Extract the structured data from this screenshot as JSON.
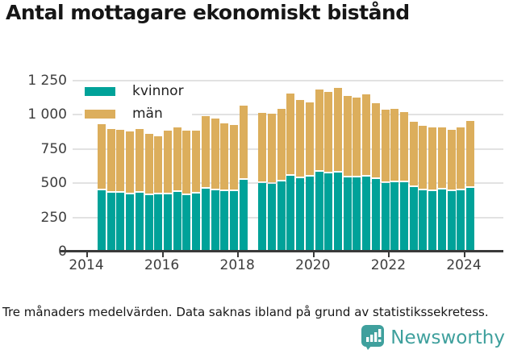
{
  "title": "Antal mottagare ekonomiskt bistånd",
  "legend": {
    "items": [
      {
        "label": "kvinnor",
        "color": "#00a299"
      },
      {
        "label": "män",
        "color": "#dcae5c"
      }
    ]
  },
  "y_axis": {
    "tick_labels": [
      "1 250",
      "1 000",
      "750",
      "500",
      "250",
      "0"
    ],
    "tick_values": [
      1250,
      1000,
      750,
      500,
      250,
      0
    ]
  },
  "x_axis": {
    "tick_labels": [
      "2014",
      "2016",
      "2018",
      "2020",
      "2022",
      "2024"
    ]
  },
  "footer": {
    "note": "Tre månaders medelvärden. Data saknas ibland på grund av statistikssekretess.",
    "brand": "Newsworthy"
  },
  "colors": {
    "kvinnor": "#00a299",
    "man": "#dcae5c",
    "axis": "#3a3a3a",
    "grid": "#e2e2e2",
    "brand_teal": "#3fa09d"
  },
  "chart_data": {
    "type": "bar",
    "stacked": true,
    "title": "Antal mottagare ekonomiskt bistånd",
    "xlabel": "",
    "ylabel": "",
    "ylim": [
      0,
      1280
    ],
    "grid": "horizontal",
    "legend_position": "top-left",
    "note": "Data missing for 2018 Q2 (statistical secrecy)",
    "x": [
      "2014 Q2",
      "2014 Q3",
      "2014 Q4",
      "2015 Q1",
      "2015 Q2",
      "2015 Q3",
      "2015 Q4",
      "2016 Q1",
      "2016 Q2",
      "2016 Q3",
      "2016 Q4",
      "2017 Q1",
      "2017 Q2",
      "2017 Q3",
      "2017 Q4",
      "2018 Q1",
      "2018 Q2",
      "2018 Q3",
      "2018 Q4",
      "2019 Q1",
      "2019 Q2",
      "2019 Q3",
      "2019 Q4",
      "2020 Q1",
      "2020 Q2",
      "2020 Q3",
      "2020 Q4",
      "2021 Q1",
      "2021 Q2",
      "2021 Q3",
      "2021 Q4",
      "2022 Q1",
      "2022 Q2",
      "2022 Q3",
      "2022 Q4",
      "2023 Q1",
      "2023 Q2",
      "2023 Q3",
      "2023 Q4",
      "2024 Q1"
    ],
    "series": [
      {
        "name": "kvinnor",
        "color": "#00a299",
        "values": [
          440,
          425,
          425,
          415,
          425,
          405,
          410,
          415,
          430,
          405,
          420,
          455,
          445,
          435,
          435,
          520,
          null,
          495,
          490,
          505,
          550,
          530,
          540,
          580,
          565,
          570,
          535,
          535,
          540,
          525,
          495,
          500,
          500,
          465,
          445,
          435,
          450,
          435,
          445,
          460
        ]
      },
      {
        "name": "män",
        "color": "#dcae5c",
        "values": [
          490,
          465,
          460,
          460,
          465,
          450,
          430,
          465,
          475,
          475,
          460,
          530,
          525,
          495,
          485,
          540,
          null,
          515,
          510,
          535,
          600,
          575,
          545,
          600,
          595,
          620,
          600,
          585,
          605,
          555,
          535,
          540,
          515,
          480,
          470,
          470,
          455,
          450,
          460,
          490
        ]
      }
    ]
  }
}
